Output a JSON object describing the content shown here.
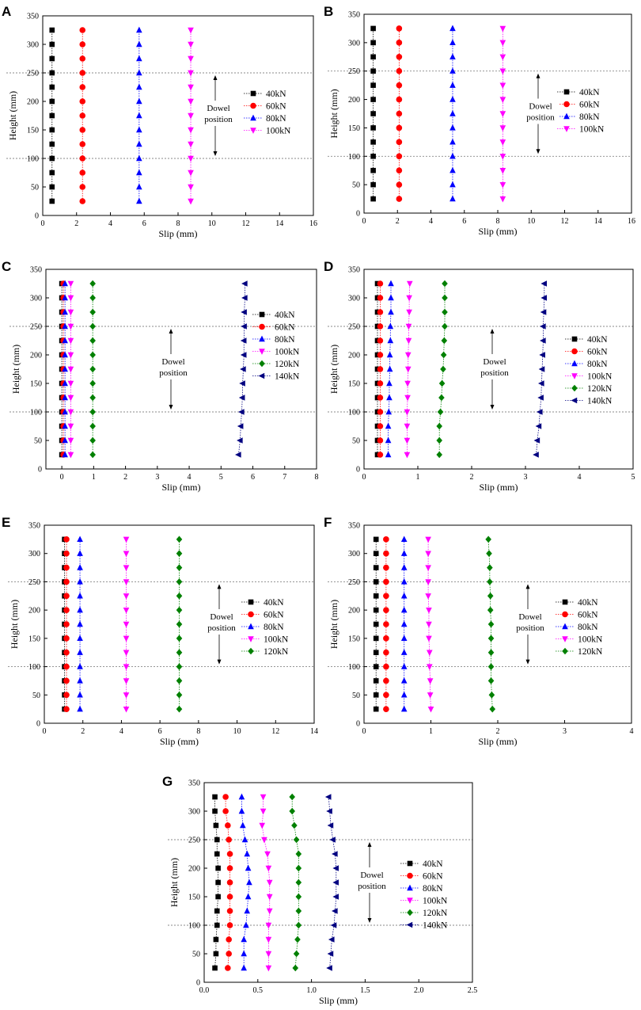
{
  "figure": {
    "annotation": {
      "label_line1": "Dowel",
      "label_line2": "position",
      "y_top": 250,
      "y_bottom": 100
    },
    "colors": {
      "40kN": "#000000",
      "60kN": "#ff0000",
      "80kN": "#0000ff",
      "100kN": "#ff00ff",
      "120kN": "#008000",
      "140kN": "#000080"
    },
    "markers": {
      "40kN": "square",
      "60kN": "circle",
      "80kN": "triangle-up",
      "100kN": "triangle-down",
      "120kN": "diamond",
      "140kN": "triangle-left"
    }
  },
  "chart_data": [
    {
      "panel": "A",
      "type": "scatter",
      "xlabel": "Slip (mm)",
      "ylabel": "Height (mm)",
      "xlim": [
        0,
        16
      ],
      "ylim": [
        0,
        350
      ],
      "xticks": [
        0,
        2,
        4,
        6,
        8,
        10,
        12,
        14,
        16
      ],
      "yticks": [
        0,
        50,
        100,
        150,
        200,
        250,
        300,
        350
      ],
      "heights": [
        25,
        50,
        75,
        100,
        125,
        150,
        175,
        200,
        225,
        250,
        275,
        300,
        325
      ],
      "series": [
        {
          "name": "40kN",
          "values": [
            0.55,
            0.55,
            0.55,
            0.55,
            0.55,
            0.55,
            0.55,
            0.55,
            0.55,
            0.55,
            0.55,
            0.55,
            0.55
          ]
        },
        {
          "name": "60kN",
          "values": [
            2.35,
            2.35,
            2.35,
            2.35,
            2.35,
            2.35,
            2.35,
            2.35,
            2.35,
            2.35,
            2.35,
            2.35,
            2.35
          ]
        },
        {
          "name": "80kN",
          "values": [
            5.7,
            5.7,
            5.7,
            5.7,
            5.7,
            5.7,
            5.7,
            5.7,
            5.7,
            5.7,
            5.7,
            5.7,
            5.7
          ]
        },
        {
          "name": "100kN",
          "values": [
            8.75,
            8.75,
            8.75,
            8.75,
            8.75,
            8.75,
            8.75,
            8.75,
            8.75,
            8.75,
            8.75,
            8.75,
            8.75
          ]
        }
      ]
    },
    {
      "panel": "B",
      "type": "scatter",
      "xlabel": "Slip (mm)",
      "ylabel": "Height (mm)",
      "xlim": [
        0,
        16
      ],
      "ylim": [
        0,
        350
      ],
      "xticks": [
        0,
        2,
        4,
        6,
        8,
        10,
        12,
        14,
        16
      ],
      "yticks": [
        0,
        50,
        100,
        150,
        200,
        250,
        300,
        350
      ],
      "heights": [
        25,
        50,
        75,
        100,
        125,
        150,
        175,
        200,
        225,
        250,
        275,
        300,
        325
      ],
      "series": [
        {
          "name": "40kN",
          "values": [
            0.55,
            0.55,
            0.55,
            0.55,
            0.55,
            0.55,
            0.55,
            0.55,
            0.55,
            0.55,
            0.55,
            0.55,
            0.55
          ]
        },
        {
          "name": "60kN",
          "values": [
            2.1,
            2.1,
            2.1,
            2.1,
            2.1,
            2.1,
            2.1,
            2.1,
            2.1,
            2.1,
            2.1,
            2.1,
            2.1
          ]
        },
        {
          "name": "80kN",
          "values": [
            5.3,
            5.3,
            5.3,
            5.3,
            5.3,
            5.3,
            5.3,
            5.3,
            5.3,
            5.3,
            5.3,
            5.3,
            5.3
          ]
        },
        {
          "name": "100kN",
          "values": [
            8.3,
            8.3,
            8.3,
            8.3,
            8.3,
            8.3,
            8.3,
            8.3,
            8.3,
            8.3,
            8.3,
            8.3,
            8.3
          ]
        }
      ]
    },
    {
      "panel": "C",
      "type": "scatter",
      "xlabel": "Slip (mm)",
      "ylabel": "Height (mm)",
      "xlim": [
        -0.5,
        8
      ],
      "ylim": [
        0,
        350
      ],
      "xticks": [
        0,
        1,
        2,
        3,
        4,
        5,
        6,
        7,
        8
      ],
      "yticks": [
        0,
        50,
        100,
        150,
        200,
        250,
        300,
        350
      ],
      "heights": [
        25,
        50,
        75,
        100,
        125,
        150,
        175,
        200,
        225,
        250,
        275,
        300,
        325
      ],
      "series": [
        {
          "name": "40kN",
          "values": [
            0,
            0,
            0,
            0,
            0,
            0,
            0,
            0,
            0,
            0,
            0,
            0,
            0
          ]
        },
        {
          "name": "60kN",
          "values": [
            0.05,
            0.05,
            0.05,
            0.05,
            0.05,
            0.05,
            0.05,
            0.05,
            0.05,
            0.05,
            0.05,
            0.05,
            0.05
          ]
        },
        {
          "name": "80kN",
          "values": [
            0.1,
            0.1,
            0.1,
            0.1,
            0.1,
            0.1,
            0.1,
            0.1,
            0.1,
            0.1,
            0.1,
            0.1,
            0.1
          ]
        },
        {
          "name": "100kN",
          "values": [
            0.28,
            0.28,
            0.28,
            0.28,
            0.28,
            0.28,
            0.28,
            0.28,
            0.28,
            0.28,
            0.28,
            0.28,
            0.28
          ]
        },
        {
          "name": "120kN",
          "values": [
            0.97,
            0.97,
            0.97,
            0.97,
            0.97,
            0.97,
            0.97,
            0.97,
            0.97,
            0.97,
            0.97,
            0.97,
            0.97
          ]
        },
        {
          "name": "140kN",
          "values": [
            5.55,
            5.6,
            5.62,
            5.65,
            5.67,
            5.68,
            5.7,
            5.72,
            5.72,
            5.73,
            5.73,
            5.75,
            5.75
          ]
        }
      ]
    },
    {
      "panel": "D",
      "type": "scatter",
      "xlabel": "Slip (mm)",
      "ylabel": "Height (mm)",
      "xlim": [
        0,
        5
      ],
      "ylim": [
        0,
        350
      ],
      "xticks": [
        0,
        1,
        2,
        3,
        4,
        5
      ],
      "yticks": [
        0,
        50,
        100,
        150,
        200,
        250,
        300,
        350
      ],
      "heights": [
        25,
        50,
        75,
        100,
        125,
        150,
        175,
        200,
        225,
        250,
        275,
        300,
        325
      ],
      "series": [
        {
          "name": "40kN",
          "values": [
            0.25,
            0.25,
            0.25,
            0.25,
            0.25,
            0.25,
            0.25,
            0.25,
            0.25,
            0.25,
            0.25,
            0.25,
            0.25
          ]
        },
        {
          "name": "60kN",
          "values": [
            0.3,
            0.3,
            0.3,
            0.3,
            0.3,
            0.3,
            0.3,
            0.3,
            0.3,
            0.3,
            0.3,
            0.3,
            0.3
          ]
        },
        {
          "name": "80kN",
          "values": [
            0.45,
            0.45,
            0.45,
            0.46,
            0.47,
            0.47,
            0.48,
            0.48,
            0.49,
            0.49,
            0.5,
            0.5,
            0.5
          ]
        },
        {
          "name": "100kN",
          "values": [
            0.8,
            0.8,
            0.8,
            0.8,
            0.81,
            0.81,
            0.82,
            0.82,
            0.83,
            0.83,
            0.84,
            0.84,
            0.85
          ]
        },
        {
          "name": "120kN",
          "values": [
            1.4,
            1.4,
            1.4,
            1.42,
            1.44,
            1.45,
            1.47,
            1.48,
            1.49,
            1.5,
            1.5,
            1.5,
            1.5
          ]
        },
        {
          "name": "140kN",
          "values": [
            3.2,
            3.22,
            3.25,
            3.27,
            3.29,
            3.3,
            3.31,
            3.32,
            3.33,
            3.33,
            3.34,
            3.35,
            3.35
          ]
        }
      ]
    },
    {
      "panel": "E",
      "type": "scatter",
      "xlabel": "Slip (mm)",
      "ylabel": "Height (mm)",
      "xlim": [
        0,
        14
      ],
      "ylim": [
        0,
        350
      ],
      "xticks": [
        0,
        2,
        4,
        6,
        8,
        10,
        12,
        14
      ],
      "yticks": [
        0,
        50,
        100,
        150,
        200,
        250,
        300,
        350
      ],
      "heights": [
        25,
        50,
        75,
        100,
        125,
        150,
        175,
        200,
        225,
        250,
        275,
        300,
        325
      ],
      "series": [
        {
          "name": "40kN",
          "values": [
            1.05,
            1.05,
            1.05,
            1.05,
            1.05,
            1.05,
            1.05,
            1.05,
            1.05,
            1.05,
            1.05,
            1.05,
            1.05
          ]
        },
        {
          "name": "60kN",
          "values": [
            1.15,
            1.15,
            1.15,
            1.15,
            1.15,
            1.15,
            1.15,
            1.15,
            1.15,
            1.15,
            1.15,
            1.15,
            1.15
          ]
        },
        {
          "name": "80kN",
          "values": [
            1.85,
            1.85,
            1.85,
            1.85,
            1.85,
            1.85,
            1.85,
            1.85,
            1.85,
            1.85,
            1.85,
            1.85,
            1.85
          ]
        },
        {
          "name": "100kN",
          "values": [
            4.25,
            4.25,
            4.25,
            4.25,
            4.25,
            4.25,
            4.25,
            4.25,
            4.25,
            4.25,
            4.25,
            4.25,
            4.25
          ]
        },
        {
          "name": "120kN",
          "values": [
            7,
            7,
            7,
            7,
            7,
            7,
            7,
            7,
            7,
            7,
            7,
            7,
            7
          ]
        }
      ]
    },
    {
      "panel": "F",
      "type": "scatter",
      "xlabel": "Slip (mm)",
      "ylabel": "Height (mm)",
      "xlim": [
        0,
        4
      ],
      "ylim": [
        0,
        350
      ],
      "xticks": [
        0,
        1,
        2,
        3,
        4
      ],
      "yticks": [
        0,
        50,
        100,
        150,
        200,
        250,
        300,
        350
      ],
      "heights": [
        25,
        50,
        75,
        100,
        125,
        150,
        175,
        200,
        225,
        250,
        275,
        300,
        325
      ],
      "series": [
        {
          "name": "40kN",
          "values": [
            0.18,
            0.18,
            0.18,
            0.18,
            0.18,
            0.18,
            0.18,
            0.18,
            0.18,
            0.18,
            0.18,
            0.18,
            0.18
          ]
        },
        {
          "name": "60kN",
          "values": [
            0.33,
            0.33,
            0.33,
            0.33,
            0.33,
            0.33,
            0.33,
            0.33,
            0.33,
            0.33,
            0.33,
            0.33,
            0.33
          ]
        },
        {
          "name": "80kN",
          "values": [
            0.6,
            0.6,
            0.6,
            0.6,
            0.6,
            0.6,
            0.6,
            0.6,
            0.6,
            0.6,
            0.6,
            0.6,
            0.6
          ]
        },
        {
          "name": "100kN",
          "values": [
            1.0,
            0.99,
            0.99,
            0.98,
            0.98,
            0.97,
            0.97,
            0.97,
            0.96,
            0.96,
            0.96,
            0.96,
            0.96
          ]
        },
        {
          "name": "120kN",
          "values": [
            1.92,
            1.91,
            1.9,
            1.9,
            1.9,
            1.9,
            1.9,
            1.89,
            1.89,
            1.88,
            1.88,
            1.87,
            1.86
          ]
        }
      ]
    },
    {
      "panel": "G",
      "type": "scatter",
      "xlabel": "Slip (mm)",
      "ylabel": "Height (mm)",
      "xlim": [
        0,
        2.5
      ],
      "ylim": [
        0,
        350
      ],
      "xticks": [
        0,
        0.5,
        1.0,
        1.5,
        2.0,
        2.5
      ],
      "yticks": [
        0,
        50,
        100,
        150,
        200,
        250,
        300,
        350
      ],
      "heights": [
        25,
        50,
        75,
        100,
        125,
        150,
        175,
        200,
        225,
        250,
        275,
        300,
        325
      ],
      "series": [
        {
          "name": "40kN",
          "values": [
            0.1,
            0.11,
            0.11,
            0.12,
            0.12,
            0.13,
            0.13,
            0.13,
            0.12,
            0.12,
            0.11,
            0.1,
            0.1
          ]
        },
        {
          "name": "60kN",
          "values": [
            0.22,
            0.23,
            0.23,
            0.24,
            0.24,
            0.24,
            0.24,
            0.24,
            0.24,
            0.23,
            0.22,
            0.2,
            0.2
          ]
        },
        {
          "name": "80kN",
          "values": [
            0.37,
            0.37,
            0.37,
            0.39,
            0.4,
            0.41,
            0.42,
            0.41,
            0.4,
            0.38,
            0.36,
            0.35,
            0.35
          ]
        },
        {
          "name": "100kN",
          "values": [
            0.6,
            0.6,
            0.6,
            0.6,
            0.61,
            0.61,
            0.61,
            0.6,
            0.59,
            0.56,
            0.54,
            0.55,
            0.55
          ]
        },
        {
          "name": "120kN",
          "values": [
            0.85,
            0.86,
            0.87,
            0.88,
            0.88,
            0.88,
            0.88,
            0.88,
            0.88,
            0.86,
            0.84,
            0.82,
            0.82
          ]
        },
        {
          "name": "140kN",
          "values": [
            1.17,
            1.18,
            1.19,
            1.21,
            1.22,
            1.23,
            1.23,
            1.23,
            1.22,
            1.2,
            1.18,
            1.17,
            1.16
          ]
        }
      ]
    }
  ]
}
